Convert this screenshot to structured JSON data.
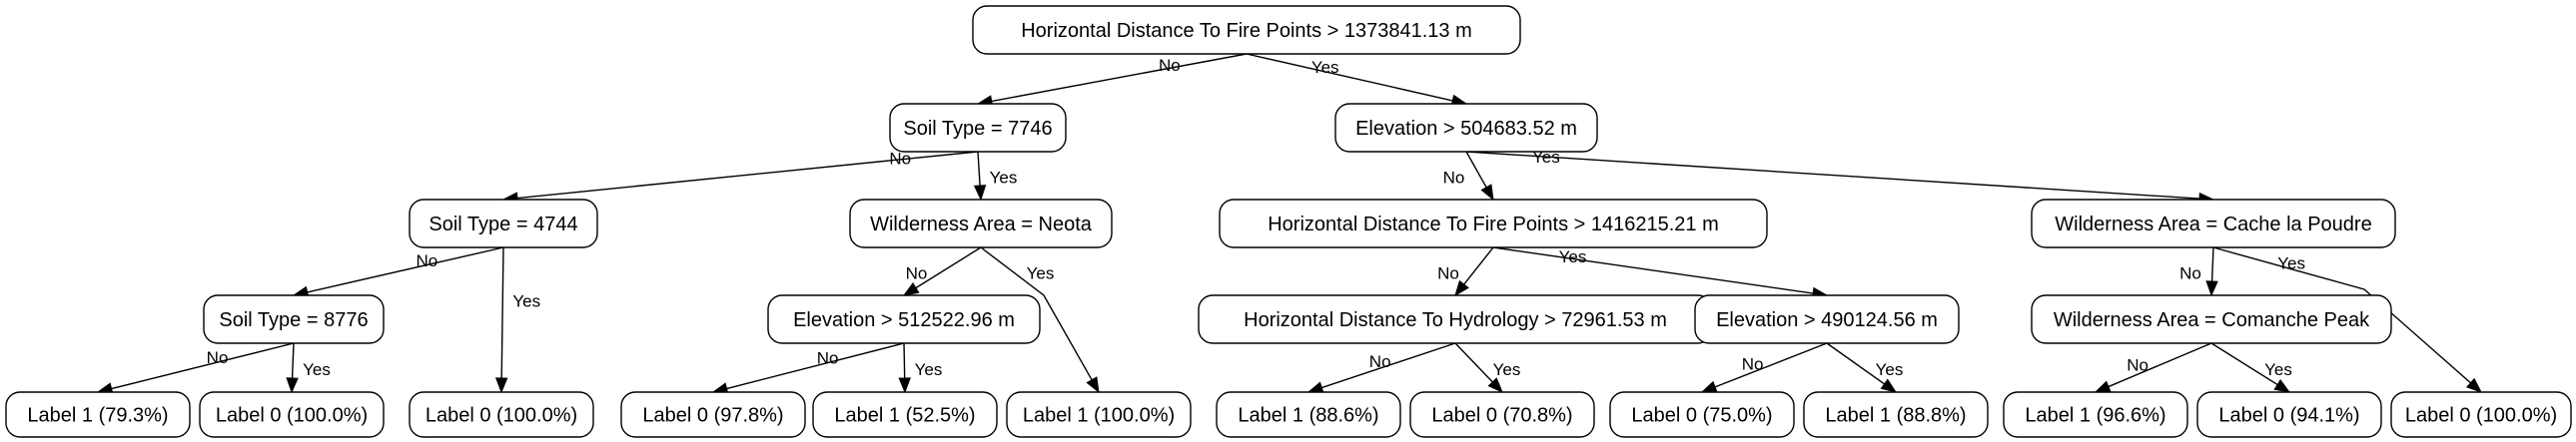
{
  "tree": {
    "nodes": [
      {
        "id": "root",
        "label": "Horizontal Distance To Fire Points > 1373841.13 m"
      },
      {
        "id": "n_soil7746",
        "label": "Soil Type = 7746"
      },
      {
        "id": "n_elev504",
        "label": "Elevation > 504683.52 m"
      },
      {
        "id": "n_soil4744",
        "label": "Soil Type = 4744"
      },
      {
        "id": "n_wild_neota",
        "label": "Wilderness Area = Neota"
      },
      {
        "id": "n_hdfp1416",
        "label": "Horizontal Distance To Fire Points > 1416215.21 m"
      },
      {
        "id": "n_wild_cache",
        "label": "Wilderness Area = Cache la Poudre"
      },
      {
        "id": "n_soil8776",
        "label": "Soil Type = 8776"
      },
      {
        "id": "n_elev512",
        "label": "Elevation > 512522.96 m"
      },
      {
        "id": "n_hdh72961",
        "label": "Horizontal Distance To Hydrology > 72961.53 m"
      },
      {
        "id": "n_elev490",
        "label": "Elevation > 490124.56 m"
      },
      {
        "id": "n_wild_comanche",
        "label": "Wilderness Area = Comanche Peak"
      },
      {
        "id": "leaf1",
        "label": "Label 1 (79.3%)"
      },
      {
        "id": "leaf2",
        "label": "Label 0 (100.0%)"
      },
      {
        "id": "leaf3",
        "label": "Label 0 (100.0%)"
      },
      {
        "id": "leaf4",
        "label": "Label 0 (97.8%)"
      },
      {
        "id": "leaf5",
        "label": "Label 1 (52.5%)"
      },
      {
        "id": "leaf6",
        "label": "Label 1 (100.0%)"
      },
      {
        "id": "leaf7",
        "label": "Label 1 (88.6%)"
      },
      {
        "id": "leaf8",
        "label": "Label 0 (70.8%)"
      },
      {
        "id": "leaf9",
        "label": "Label 0 (75.0%)"
      },
      {
        "id": "leaf10",
        "label": "Label 1 (88.8%)"
      },
      {
        "id": "leaf11",
        "label": "Label 1 (96.6%)"
      },
      {
        "id": "leaf12",
        "label": "Label 0 (94.1%)"
      },
      {
        "id": "leaf13",
        "label": "Label 0 (100.0%)"
      }
    ],
    "edges": [
      {
        "from": "root",
        "to": "n_soil7746",
        "label": "No"
      },
      {
        "from": "root",
        "to": "n_elev504",
        "label": "Yes"
      },
      {
        "from": "n_soil7746",
        "to": "n_soil4744",
        "label": "No"
      },
      {
        "from": "n_soil7746",
        "to": "n_wild_neota",
        "label": "Yes"
      },
      {
        "from": "n_soil4744",
        "to": "n_soil8776",
        "label": "No"
      },
      {
        "from": "n_soil4744",
        "to": "leaf3",
        "label": "Yes"
      },
      {
        "from": "n_soil8776",
        "to": "leaf1",
        "label": "No"
      },
      {
        "from": "n_soil8776",
        "to": "leaf2",
        "label": "Yes"
      },
      {
        "from": "n_wild_neota",
        "to": "n_elev512",
        "label": "No"
      },
      {
        "from": "n_wild_neota",
        "to": "leaf6",
        "label": "Yes"
      },
      {
        "from": "n_elev512",
        "to": "leaf4",
        "label": "No"
      },
      {
        "from": "n_elev512",
        "to": "leaf5",
        "label": "Yes"
      },
      {
        "from": "n_elev504",
        "to": "n_hdfp1416",
        "label": "No"
      },
      {
        "from": "n_elev504",
        "to": "n_wild_cache",
        "label": "Yes"
      },
      {
        "from": "n_hdfp1416",
        "to": "n_hdh72961",
        "label": "No"
      },
      {
        "from": "n_hdfp1416",
        "to": "n_elev490",
        "label": "Yes"
      },
      {
        "from": "n_hdh72961",
        "to": "leaf7",
        "label": "No"
      },
      {
        "from": "n_hdh72961",
        "to": "leaf8",
        "label": "Yes"
      },
      {
        "from": "n_elev490",
        "to": "leaf9",
        "label": "No"
      },
      {
        "from": "n_elev490",
        "to": "leaf10",
        "label": "Yes"
      },
      {
        "from": "n_wild_cache",
        "to": "n_wild_comanche",
        "label": "No"
      },
      {
        "from": "n_wild_cache",
        "to": "leaf13",
        "label": "Yes"
      },
      {
        "from": "n_wild_comanche",
        "to": "leaf11",
        "label": "No"
      },
      {
        "from": "n_wild_comanche",
        "to": "leaf12",
        "label": "Yes"
      }
    ]
  }
}
